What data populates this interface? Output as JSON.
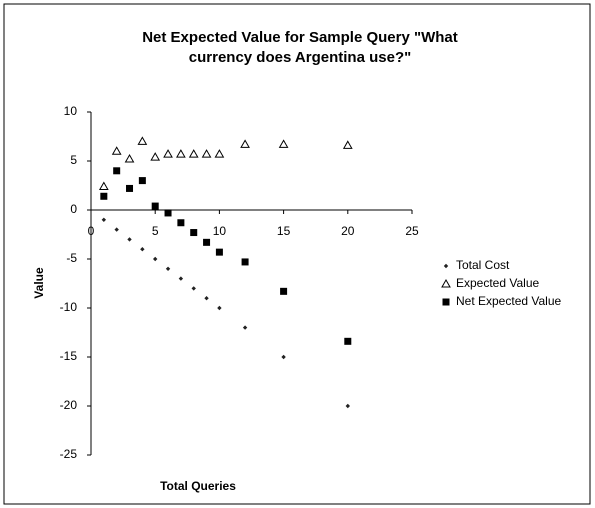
{
  "chart_data": {
    "type": "scatter",
    "title": [
      "Net Expected Value for Sample Query \"What",
      "currency does Argentina use?\""
    ],
    "xlabel": "Total Queries",
    "ylabel": "Value",
    "xlim": [
      0,
      25
    ],
    "xticks": [
      0,
      5,
      10,
      15,
      20,
      25
    ],
    "ylim": [
      -25,
      10
    ],
    "yticks": [
      10,
      5,
      0,
      -5,
      -10,
      -15,
      -20,
      -25
    ],
    "legend": "right",
    "series": [
      {
        "name": "Total Cost",
        "color": "#222222",
        "marker": "diamond",
        "x": [
          1,
          2,
          3,
          4,
          5,
          6,
          7,
          8,
          9,
          10,
          12,
          15,
          20
        ],
        "values": [
          -1,
          -2,
          -3,
          -4,
          -5,
          -6,
          -7,
          -8,
          -9,
          -10,
          -12,
          -15,
          -20
        ]
      },
      {
        "name": "Expected Value",
        "color": "#000000",
        "marker": "triangle",
        "x": [
          1,
          2,
          3,
          4,
          5,
          6,
          7,
          8,
          9,
          10,
          12,
          15,
          20
        ],
        "values": [
          2.4,
          6.0,
          5.2,
          7.0,
          5.4,
          5.7,
          5.7,
          5.7,
          5.7,
          5.7,
          6.7,
          6.7,
          6.6
        ]
      },
      {
        "name": "Net Expected Value",
        "color": "#000000",
        "marker": "square",
        "x": [
          1,
          2,
          3,
          4,
          5,
          6,
          7,
          8,
          9,
          10,
          12,
          15,
          20
        ],
        "values": [
          1.4,
          4.0,
          2.2,
          3.0,
          0.4,
          -0.3,
          -1.3,
          -2.3,
          -3.3,
          -4.3,
          -5.3,
          -8.3,
          -13.4
        ]
      }
    ]
  }
}
